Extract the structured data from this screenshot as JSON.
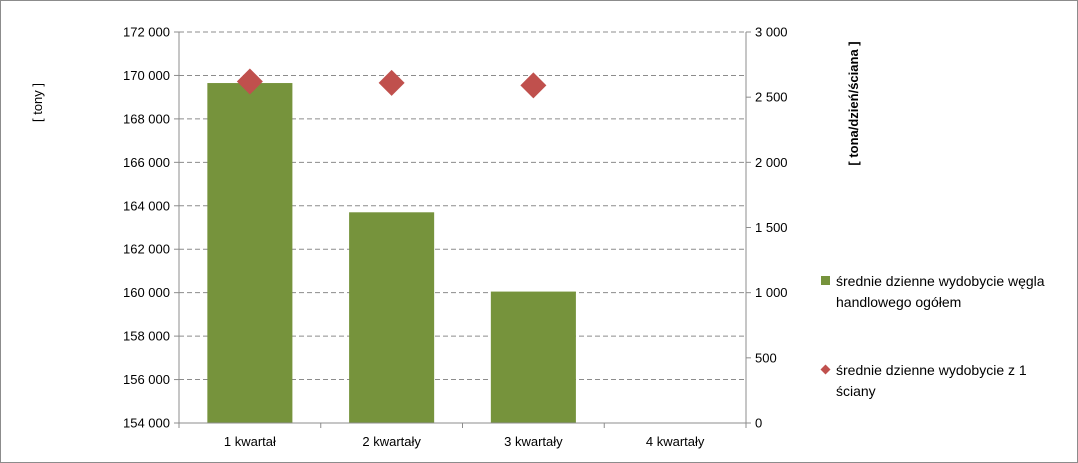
{
  "chart_data": {
    "type": "bar",
    "categories": [
      "1 kwartał",
      "2 kwartały",
      "3 kwartały",
      "4 kwartały"
    ],
    "series": [
      {
        "name": "średnie dzienne wydobycie węgla handlowego ogółem",
        "type": "bar",
        "axis": "left",
        "color": "#76933c",
        "values": [
          169650,
          163700,
          160050,
          null
        ]
      },
      {
        "name": "średnie dzienne wydobycie z 1 ściany",
        "type": "scatter",
        "marker": "diamond",
        "axis": "right",
        "color": "#c0504d",
        "values": [
          2620,
          2610,
          2590,
          null
        ]
      }
    ],
    "ylabel_left": "[ tony ]",
    "ylabel_right": "[ tona/dzień/ściana ]",
    "ylim_left": [
      154000,
      172000
    ],
    "yticks_left": [
      154000,
      156000,
      158000,
      160000,
      162000,
      164000,
      166000,
      168000,
      170000,
      172000
    ],
    "yticklabels_left": [
      "154 000",
      "156 000",
      "158 000",
      "160 000",
      "162 000",
      "164 000",
      "166 000",
      "168 000",
      "170 000",
      "172 000"
    ],
    "ylim_right": [
      0,
      3000
    ],
    "yticks_right": [
      0,
      500,
      1000,
      1500,
      2000,
      2500,
      3000
    ],
    "yticklabels_right": [
      "0",
      "500",
      "1 000",
      "1 500",
      "2 000",
      "2 500",
      "3 000"
    ],
    "grid": true,
    "legend_position": "right",
    "legend": [
      {
        "marker": "square",
        "color": "#76933c",
        "lines": [
          "średnie dzienne wydobycie węgla",
          "handlowego ogółem"
        ]
      },
      {
        "marker": "diamond",
        "color": "#c0504d",
        "lines": [
          "średnie dzienne wydobycie z 1",
          "ściany"
        ]
      }
    ]
  }
}
